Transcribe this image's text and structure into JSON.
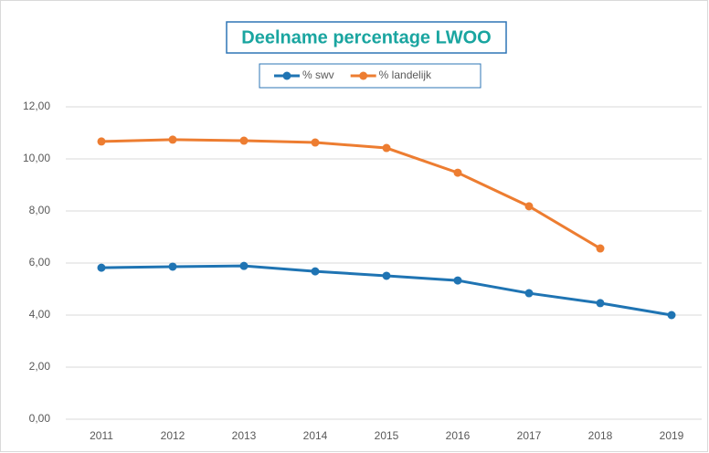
{
  "chart_data": {
    "type": "line",
    "title": "Deelname percentage LWOO",
    "categories": [
      "2011",
      "2012",
      "2013",
      "2014",
      "2015",
      "2016",
      "2017",
      "2018",
      "2019"
    ],
    "series": [
      {
        "name": "% swv",
        "color": "#1f74b3",
        "values": [
          5.82,
          5.86,
          5.89,
          5.68,
          5.51,
          5.33,
          4.84,
          4.46,
          4.0
        ]
      },
      {
        "name": "% landelijk",
        "color": "#ed7d31",
        "values": [
          10.67,
          10.74,
          10.7,
          10.63,
          10.42,
          9.47,
          8.18,
          6.56,
          null
        ]
      }
    ],
    "ylim": [
      0,
      12
    ],
    "yticks": [
      {
        "value": 0,
        "label": "0,00"
      },
      {
        "value": 2,
        "label": "2,00"
      },
      {
        "value": 4,
        "label": "4,00"
      },
      {
        "value": 6,
        "label": "6,00"
      },
      {
        "value": 8,
        "label": "8,00"
      },
      {
        "value": 10,
        "label": "10,00"
      },
      {
        "value": 12,
        "label": "12,00"
      }
    ],
    "grid": true,
    "legend": "top"
  }
}
